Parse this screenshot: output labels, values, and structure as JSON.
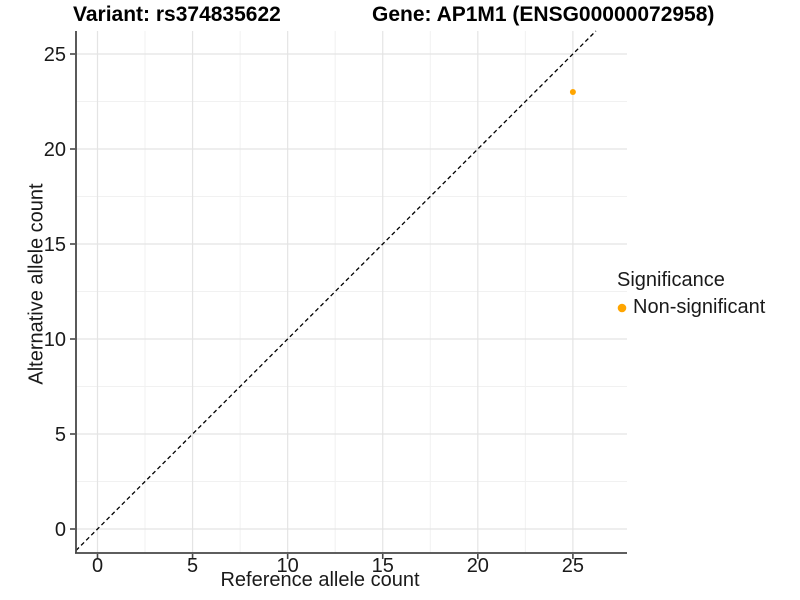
{
  "header": {
    "title_variant": "Variant: rs374835622",
    "title_gene": "Gene: AP1M1 (ENSG00000072958)"
  },
  "legend": {
    "title": "Significance",
    "items": [
      {
        "label": "Non-significant",
        "color": "#FFA500"
      }
    ]
  },
  "chart_data": {
    "type": "scatter",
    "title": "Variant: rs374835622   Gene: AP1M1 (ENSG00000072958)",
    "xlabel": "Reference allele count",
    "ylabel": "Alternative allele count",
    "x_ticks": [
      0,
      5,
      10,
      15,
      20,
      25
    ],
    "y_ticks": [
      0,
      5,
      10,
      15,
      20,
      25
    ],
    "xlim": [
      -1.13,
      27.84
    ],
    "ylim": [
      -1.26,
      26.21
    ],
    "grid": true,
    "legend_position": "right",
    "reference_line": {
      "type": "identity",
      "slope": 1,
      "intercept": 0,
      "style": "dashed",
      "color": "#000000"
    },
    "series": [
      {
        "name": "Non-significant",
        "color": "#FFA500",
        "points": [
          {
            "x": 25,
            "y": 23
          }
        ]
      }
    ]
  },
  "style_colors": {
    "major_grid": "#e4e4e4",
    "minor_grid": "#f1f1f1",
    "axis_line": "#474747",
    "tick_mark": "#474747",
    "tick_label": "#1a1a1a"
  }
}
